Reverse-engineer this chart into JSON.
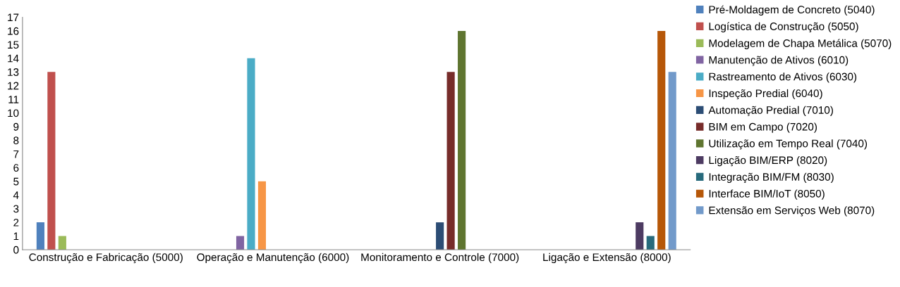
{
  "chart_data": {
    "type": "bar",
    "categories": [
      "Construção e Fabricação (5000)",
      "Operação e Manutenção (6000)",
      "Monitoramento e Controle (7000)",
      "Ligação e Extensão (8000)"
    ],
    "series": [
      {
        "name": "Pré-Moldagem de Concreto (5040)",
        "color": "#4f81bd",
        "values": [
          2,
          null,
          null,
          null
        ]
      },
      {
        "name": "Logística de Construção (5050)",
        "color": "#c0504d",
        "values": [
          13,
          null,
          null,
          null
        ]
      },
      {
        "name": "Modelagem de Chapa Metálica (5070)",
        "color": "#9bbb59",
        "values": [
          1,
          null,
          null,
          null
        ]
      },
      {
        "name": "Manutenção de Ativos (6010)",
        "color": "#8064a2",
        "values": [
          null,
          1,
          null,
          null
        ]
      },
      {
        "name": "Rastreamento de Ativos (6030)",
        "color": "#4bacc6",
        "values": [
          null,
          14,
          null,
          null
        ]
      },
      {
        "name": "Inspeção Predial (6040)",
        "color": "#f79646",
        "values": [
          null,
          5,
          null,
          null
        ]
      },
      {
        "name": "Automação Predial (7010)",
        "color": "#2c4d75",
        "values": [
          null,
          null,
          2,
          null
        ]
      },
      {
        "name": "BIM em Campo (7020)",
        "color": "#772c2a",
        "values": [
          null,
          null,
          13,
          null
        ]
      },
      {
        "name": "Utilização em Tempo Real (7040)",
        "color": "#5f7530",
        "values": [
          null,
          null,
          16,
          null
        ]
      },
      {
        "name": "Ligação BIM/ERP (8020)",
        "color": "#4d3b62",
        "values": [
          null,
          null,
          null,
          2
        ]
      },
      {
        "name": "Integração BIM/FM (8030)",
        "color": "#276a7c",
        "values": [
          null,
          null,
          null,
          1
        ]
      },
      {
        "name": "Interface BIM/IoT (8050)",
        "color": "#b65708",
        "values": [
          null,
          null,
          null,
          16
        ]
      },
      {
        "name": "Extensão em Serviços Web (8070)",
        "color": "#729aca",
        "values": [
          null,
          null,
          null,
          13
        ]
      }
    ],
    "ylim": [
      0,
      17
    ],
    "yticks": [
      0,
      1,
      2,
      3,
      4,
      5,
      6,
      7,
      8,
      9,
      10,
      11,
      12,
      13,
      14,
      15,
      16,
      17
    ],
    "grid": false,
    "legend": "right"
  }
}
